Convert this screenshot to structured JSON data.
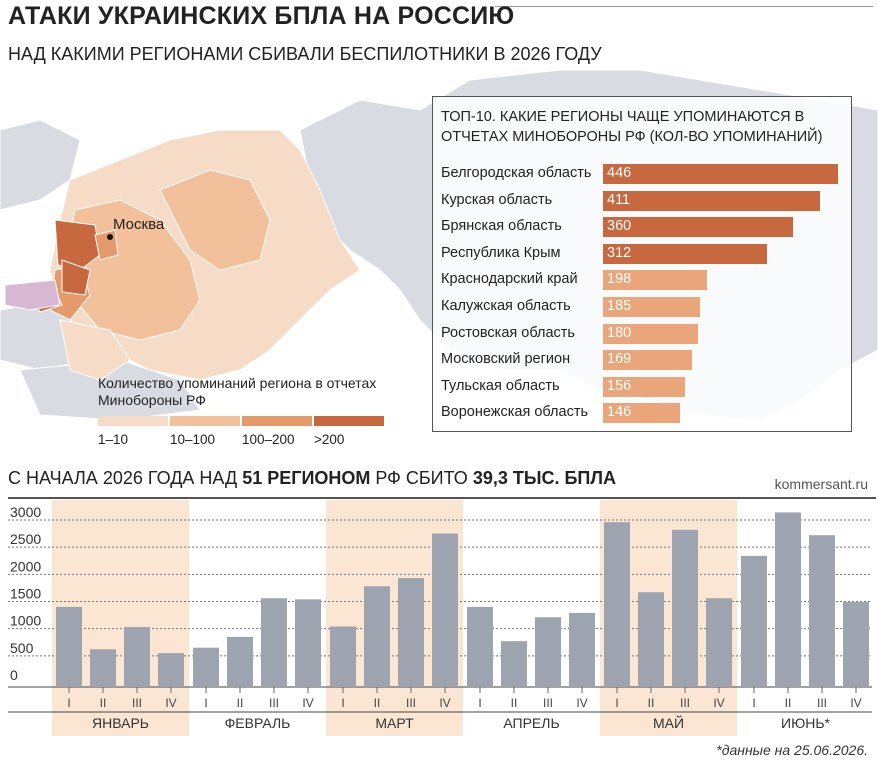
{
  "header": {
    "title": "АТАКИ УКРАИНСКИХ БПЛА НА РОССИЮ",
    "subtitle": "НАД КАКИМИ РЕГИОНАМИ СБИВАЛИ БЕСПИЛОТНИКИ В 2026 ГОДУ"
  },
  "map": {
    "moscow_label": "Москва",
    "legend_title": "Количество упоминаний региона в отчетах Минобороны РФ",
    "legend": [
      {
        "label": "1–10",
        "color": "#f6dcc6"
      },
      {
        "label": "10–100",
        "color": "#f2c09a"
      },
      {
        "label": "100–200",
        "color": "#e59a6b"
      },
      {
        "label": ">200",
        "color": "#c8683f"
      }
    ],
    "colors": {
      "russia_light": "#f6dcc6",
      "russia_mid": "#f2c09a",
      "russia_dark": "#c8683f",
      "other_land": "#d8dbe2",
      "ukraine": "#d9b8d4"
    }
  },
  "top10": {
    "title": "ТОП-10. КАКИЕ РЕГИОНЫ ЧАЩЕ УПОМИНАЮТСЯ В ОТЧЕТАХ МИНОБОРОНЫ РФ (КОЛ-ВО УПОМИНАНИЙ)",
    "rows": [
      {
        "name": "Белгородская область",
        "value": "446"
      },
      {
        "name": "Курская область",
        "value": "411"
      },
      {
        "name": "Брянская область",
        "value": "360"
      },
      {
        "name": "Республика Крым",
        "value": "312"
      },
      {
        "name": "Краснодарский край",
        "value": "198"
      },
      {
        "name": "Калужская область",
        "value": "185"
      },
      {
        "name": "Ростовская область",
        "value": "180"
      },
      {
        "name": "Московский регион",
        "value": "169"
      },
      {
        "name": "Тульская область",
        "value": "156"
      },
      {
        "name": "Воронежская область",
        "value": "146"
      }
    ],
    "colors": {
      "high": "#c8683f",
      "low": "#eba57a"
    }
  },
  "summary": {
    "part1": "С НАЧАЛА 2026 ГОДА НАД ",
    "part2": "51 РЕГИОНОМ",
    "part3": " РФ СБИТО ",
    "part4": "39,3 ТЫС. БПЛА"
  },
  "brand": "kommersant.ru",
  "footnote": "*данные на 25.06.2026.",
  "chart_data": {
    "type": "bar",
    "ylim": [
      0,
      3000
    ],
    "yticks": [
      "0",
      "500",
      "1000",
      "1500",
      "2000",
      "2500",
      "3000"
    ],
    "months": [
      {
        "label": "ЯНВАРЬ",
        "weeks": [
          "I",
          "II",
          "III",
          "IV"
        ],
        "values": [
          1400,
          620,
          1030,
          550
        ],
        "shaded": true
      },
      {
        "label": "ФЕВРАЛЬ",
        "weeks": [
          "I",
          "II",
          "III",
          "IV"
        ],
        "values": [
          650,
          850,
          1560,
          1540
        ],
        "shaded": false
      },
      {
        "label": "МАРТ",
        "weeks": [
          "I",
          "II",
          "III",
          "IV"
        ],
        "values": [
          1040,
          1780,
          1930,
          2750
        ],
        "shaded": true
      },
      {
        "label": "АПРЕЛЬ",
        "weeks": [
          "I",
          "II",
          "III",
          "IV"
        ],
        "values": [
          1400,
          770,
          1210,
          1290
        ],
        "shaded": false
      },
      {
        "label": "МАЙ",
        "weeks": [
          "I",
          "II",
          "III",
          "IV"
        ],
        "values": [
          2960,
          1670,
          2820,
          1560
        ],
        "shaded": true
      },
      {
        "label": "ИЮНЬ*",
        "weeks": [
          "I",
          "II",
          "III",
          "IV"
        ],
        "values": [
          2340,
          3140,
          2720,
          1490
        ],
        "shaded": false
      }
    ],
    "colors": {
      "bar": "#9ea3b0",
      "shade": "#fbe5d3"
    }
  }
}
